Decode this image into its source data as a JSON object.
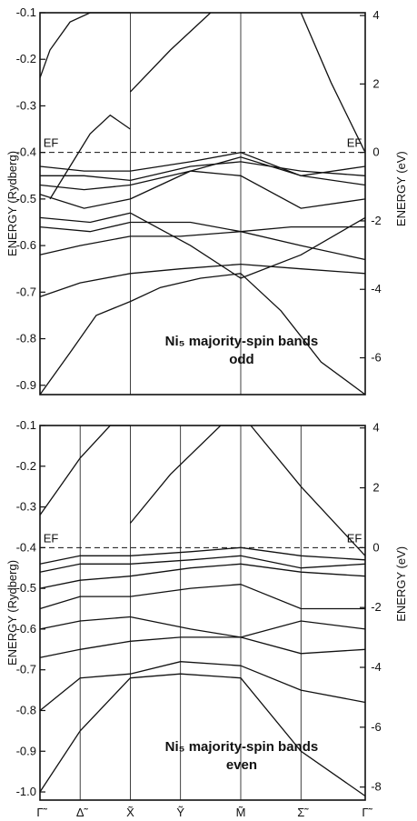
{
  "chart_data": [
    {
      "type": "line",
      "title": "Ni₅ majority-spin bands",
      "subtitle": "odd",
      "ylabel": "ENERGY (Rydberg)",
      "ylabel_right": "ENERGY (eV)",
      "ylim": [
        -0.92,
        -0.1
      ],
      "yticks": [
        -0.1,
        -0.2,
        -0.3,
        -0.4,
        -0.5,
        -0.6,
        -0.7,
        -0.8,
        -0.9
      ],
      "ytick_labels": [
        "-0.1",
        "-0.2",
        "-0.3",
        "-0.4",
        "-0.5",
        "-0.6",
        "-0.7",
        "-0.8",
        "-0.9"
      ],
      "ev_ticks": [
        4,
        2,
        0,
        -2,
        -4,
        -6
      ],
      "ev_tick_labels": [
        "4",
        "2",
        "0",
        "-2",
        "-4",
        "-6"
      ],
      "fermi_label": "EF",
      "fermi_energy": -0.4,
      "x_points": [
        "Γ",
        "X",
        "M",
        "Γ"
      ],
      "series": [
        {
          "x": [
            0,
            0.15,
            0.28,
            0.45
          ],
          "y": [
            -0.92,
            -0.83,
            -0.75,
            -0.72
          ]
        },
        {
          "x": [
            0.45,
            0.6,
            0.8,
            1.0
          ],
          "y": [
            -0.72,
            -0.69,
            -0.67,
            -0.66
          ]
        },
        {
          "x": [
            1.0,
            1.2,
            1.4,
            1.62
          ],
          "y": [
            -0.66,
            -0.74,
            -0.85,
            -0.92
          ]
        },
        {
          "x": [
            0,
            0.05,
            0.15,
            0.25,
            0.45
          ],
          "y": [
            -0.24,
            -0.18,
            -0.12,
            -0.1,
            -0.1
          ]
        },
        {
          "x": [
            0.45,
            0.65,
            0.85
          ],
          "y": [
            -0.27,
            -0.18,
            -0.1
          ]
        },
        {
          "x": [
            0.05,
            0.15,
            0.25,
            0.35,
            0.45
          ],
          "y": [
            -0.5,
            -0.43,
            -0.36,
            -0.32,
            -0.35
          ]
        },
        {
          "x": [
            1.3,
            1.45,
            1.62
          ],
          "y": [
            -0.1,
            -0.25,
            -0.4
          ]
        },
        {
          "x": [
            0,
            0.2,
            0.45
          ],
          "y": [
            -0.71,
            -0.68,
            -0.66
          ]
        },
        {
          "x": [
            0.45,
            0.7,
            1.0
          ],
          "y": [
            -0.66,
            -0.65,
            -0.64
          ]
        },
        {
          "x": [
            1.0,
            1.3,
            1.62
          ],
          "y": [
            -0.64,
            -0.65,
            -0.66
          ]
        },
        {
          "x": [
            0,
            0.2,
            0.45
          ],
          "y": [
            -0.62,
            -0.6,
            -0.58
          ]
        },
        {
          "x": [
            0.45,
            0.7,
            1.0,
            1.3,
            1.62
          ],
          "y": [
            -0.58,
            -0.58,
            -0.57,
            -0.6,
            -0.63
          ]
        },
        {
          "x": [
            0,
            0.25,
            0.45
          ],
          "y": [
            -0.56,
            -0.57,
            -0.55
          ]
        },
        {
          "x": [
            0.45,
            0.75,
            1.0,
            1.25,
            1.62
          ],
          "y": [
            -0.55,
            -0.55,
            -0.57,
            -0.56,
            -0.56
          ]
        },
        {
          "x": [
            0,
            0.25,
            0.45
          ],
          "y": [
            -0.54,
            -0.55,
            -0.53
          ]
        },
        {
          "x": [
            0.45,
            0.75,
            1.0,
            1.3,
            1.62
          ],
          "y": [
            -0.53,
            -0.6,
            -0.67,
            -0.62,
            -0.54
          ]
        },
        {
          "x": [
            0,
            0.22,
            0.45
          ],
          "y": [
            -0.49,
            -0.52,
            -0.5
          ]
        },
        {
          "x": [
            0.45,
            0.75,
            1.0,
            1.3,
            1.62
          ],
          "y": [
            -0.5,
            -0.44,
            -0.45,
            -0.52,
            -0.5
          ]
        },
        {
          "x": [
            0,
            0.22,
            0.45
          ],
          "y": [
            -0.47,
            -0.48,
            -0.47
          ]
        },
        {
          "x": [
            0.45,
            0.75,
            1.0,
            1.3,
            1.62
          ],
          "y": [
            -0.47,
            -0.44,
            -0.41,
            -0.45,
            -0.47
          ]
        },
        {
          "x": [
            0,
            0.22,
            0.45
          ],
          "y": [
            -0.45,
            -0.45,
            -0.46
          ]
        },
        {
          "x": [
            0.45,
            0.75,
            1.0,
            1.3,
            1.62
          ],
          "y": [
            -0.46,
            -0.43,
            -0.42,
            -0.44,
            -0.45
          ]
        },
        {
          "x": [
            0,
            0.22,
            0.45
          ],
          "y": [
            -0.43,
            -0.44,
            -0.44
          ]
        },
        {
          "x": [
            0.45,
            0.75,
            1.0,
            1.3,
            1.62
          ],
          "y": [
            -0.44,
            -0.42,
            -0.4,
            -0.45,
            -0.43
          ]
        }
      ]
    },
    {
      "type": "line",
      "title": "Ni₅ majority-spin bands",
      "subtitle": "even",
      "ylabel": "ENERGY (Rydberg)",
      "ylabel_right": "ENERGY (eV)",
      "ylim": [
        -1.02,
        -0.1
      ],
      "yticks": [
        -0.1,
        -0.2,
        -0.3,
        -0.4,
        -0.5,
        -0.6,
        -0.7,
        -0.8,
        -0.9,
        -1.0
      ],
      "ytick_labels": [
        "-0.1",
        "-0.2",
        "-0.3",
        "-0.4",
        "-0.5",
        "-0.6",
        "-0.7",
        "-0.8",
        "-0.9",
        "-1.0"
      ],
      "ev_ticks": [
        4,
        2,
        0,
        -2,
        -4,
        -6,
        -8
      ],
      "ev_tick_labels": [
        "4",
        "2",
        "0",
        "-2",
        "-4",
        "-6",
        "-8"
      ],
      "fermi_label": "EF",
      "fermi_energy": -0.4,
      "x_points": [
        "Γ̃",
        "Δ̃",
        "X̃",
        "Ỹ",
        "M̃",
        "Σ̃",
        "Γ̃"
      ],
      "series": [
        {
          "x": [
            0,
            0.2,
            0.45
          ],
          "y": [
            -1.0,
            -0.85,
            -0.72
          ]
        },
        {
          "x": [
            0.45,
            0.7,
            1.0
          ],
          "y": [
            -0.72,
            -0.71,
            -0.72
          ]
        },
        {
          "x": [
            1.0,
            1.3,
            1.62
          ],
          "y": [
            -0.72,
            -0.9,
            -1.01
          ]
        },
        {
          "x": [
            0,
            0.2,
            0.45
          ],
          "y": [
            -0.8,
            -0.72,
            -0.71
          ]
        },
        {
          "x": [
            0.45,
            0.7,
            1.0
          ],
          "y": [
            -0.71,
            -0.68,
            -0.69
          ]
        },
        {
          "x": [
            1.0,
            1.3,
            1.62
          ],
          "y": [
            -0.69,
            -0.75,
            -0.78
          ]
        },
        {
          "x": [
            0,
            0.1,
            0.2,
            0.35,
            0.45
          ],
          "y": [
            -0.32,
            -0.25,
            -0.18,
            -0.1,
            -0.1
          ]
        },
        {
          "x": [
            0.45,
            0.65,
            0.9,
            1.0
          ],
          "y": [
            -0.34,
            -0.22,
            -0.1,
            -0.1
          ]
        },
        {
          "x": [
            1.05,
            1.3,
            1.62
          ],
          "y": [
            -0.1,
            -0.25,
            -0.42
          ]
        },
        {
          "x": [
            0,
            0.2,
            0.45
          ],
          "y": [
            -0.67,
            -0.65,
            -0.63
          ]
        },
        {
          "x": [
            0.45,
            0.7,
            1.0
          ],
          "y": [
            -0.63,
            -0.62,
            -0.62
          ]
        },
        {
          "x": [
            1.0,
            1.3,
            1.62
          ],
          "y": [
            -0.62,
            -0.66,
            -0.65
          ]
        },
        {
          "x": [
            0,
            0.2,
            0.45
          ],
          "y": [
            -0.6,
            -0.58,
            -0.57
          ]
        },
        {
          "x": [
            0.45,
            0.75,
            1.0
          ],
          "y": [
            -0.57,
            -0.6,
            -0.62
          ]
        },
        {
          "x": [
            1.0,
            1.3,
            1.62
          ],
          "y": [
            -0.62,
            -0.58,
            -0.6
          ]
        },
        {
          "x": [
            0,
            0.2,
            0.45
          ],
          "y": [
            -0.55,
            -0.52,
            -0.52
          ]
        },
        {
          "x": [
            0.45,
            0.75,
            1.0
          ],
          "y": [
            -0.52,
            -0.5,
            -0.49
          ]
        },
        {
          "x": [
            1.0,
            1.3,
            1.62
          ],
          "y": [
            -0.49,
            -0.55,
            -0.55
          ]
        },
        {
          "x": [
            0,
            0.2,
            0.45
          ],
          "y": [
            -0.5,
            -0.48,
            -0.47
          ]
        },
        {
          "x": [
            0.45,
            0.75,
            1.0
          ],
          "y": [
            -0.47,
            -0.45,
            -0.44
          ]
        },
        {
          "x": [
            1.0,
            1.3,
            1.62
          ],
          "y": [
            -0.44,
            -0.46,
            -0.47
          ]
        },
        {
          "x": [
            0,
            0.2,
            0.45
          ],
          "y": [
            -0.46,
            -0.44,
            -0.44
          ]
        },
        {
          "x": [
            0.45,
            0.75,
            1.0
          ],
          "y": [
            -0.44,
            -0.43,
            -0.42
          ]
        },
        {
          "x": [
            1.0,
            1.3,
            1.62
          ],
          "y": [
            -0.42,
            -0.45,
            -0.44
          ]
        },
        {
          "x": [
            0,
            0.2,
            0.45
          ],
          "y": [
            -0.44,
            -0.42,
            -0.42
          ]
        },
        {
          "x": [
            0.45,
            0.75,
            1.0
          ],
          "y": [
            -0.42,
            -0.41,
            -0.4
          ]
        },
        {
          "x": [
            1.0,
            1.3,
            1.62
          ],
          "y": [
            -0.4,
            -0.42,
            -0.43
          ]
        }
      ]
    }
  ]
}
